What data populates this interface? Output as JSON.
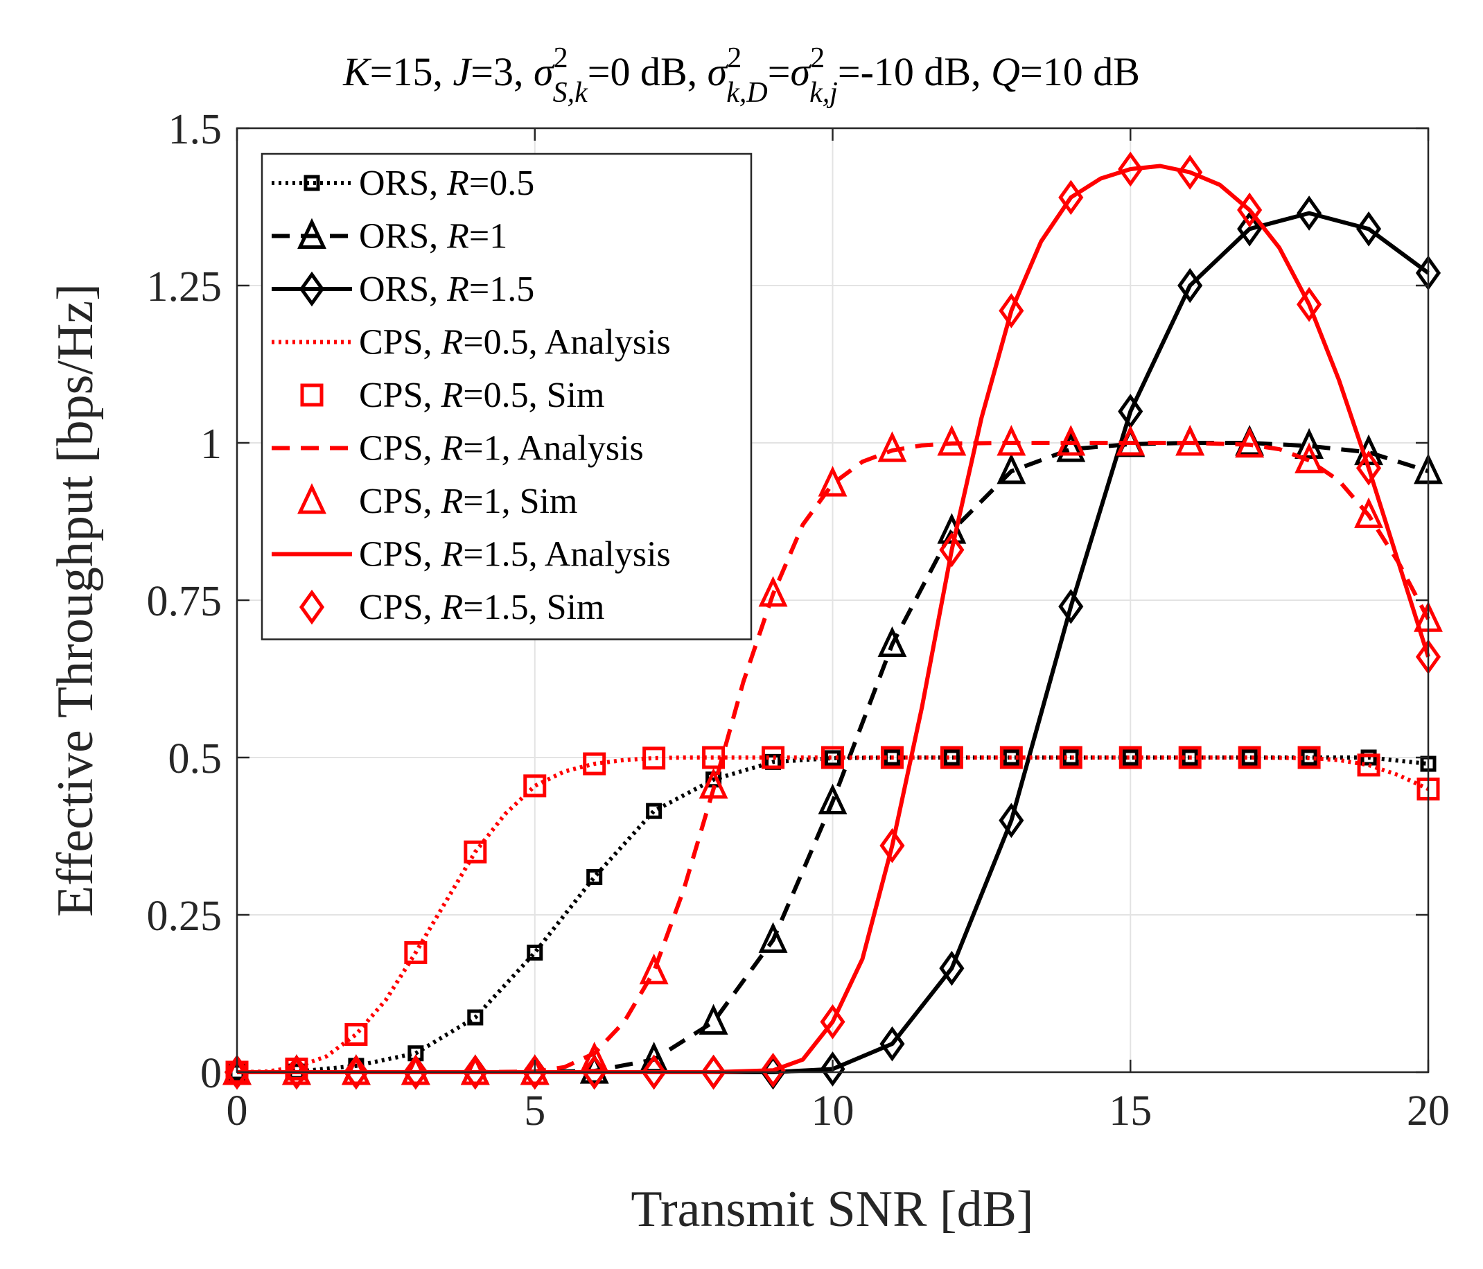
{
  "chart_data": {
    "type": "line",
    "title_parts": {
      "k_label": "K",
      "k_value": "=15, ",
      "j_label": "J",
      "j_value": "=3, ",
      "sigma": "σ",
      "sk_sup": "2",
      "sk_sub": "S,k",
      "sk_value": "=0 dB, ",
      "kd_sup": "2",
      "kd_sub": "k,D",
      "eq": "=",
      "kj_sup": "2",
      "kj_sub": "k,j",
      "kj_value": "=-10 dB, ",
      "q_label": "Q",
      "q_value": "=10 dB"
    },
    "xlabel": "Transmit SNR [dB]",
    "ylabel": "Effective Throughput [bps/Hz]",
    "xlim": [
      0,
      20
    ],
    "ylim": [
      0,
      1.5
    ],
    "xticks": [
      0,
      5,
      10,
      15,
      20
    ],
    "xtick_labels": [
      "0",
      "5",
      "10",
      "15",
      "20"
    ],
    "yticks": [
      0,
      0.25,
      0.5,
      0.75,
      1,
      1.25,
      1.5
    ],
    "ytick_labels": [
      "0",
      "0.25",
      "0.5",
      "0.75",
      "1",
      "1.25",
      "1.5"
    ],
    "grid": true,
    "legend_position": "top-left",
    "x": [
      0,
      1,
      2,
      3,
      4,
      5,
      6,
      7,
      8,
      9,
      10,
      11,
      12,
      13,
      14,
      15,
      16,
      17,
      18,
      19,
      20
    ],
    "series": [
      {
        "legend_prefix": "ORS, ",
        "legend_var": "R",
        "legend_suffix": "=0.5",
        "color": "#000000",
        "line": "dotted",
        "marker": "square",
        "marker_size": "small",
        "values": [
          0,
          0.001,
          0.01,
          0.03,
          0.087,
          0.19,
          0.31,
          0.415,
          0.465,
          0.493,
          0.499,
          0.5,
          0.5,
          0.5,
          0.5,
          0.5,
          0.5,
          0.5,
          0.5,
          0.5,
          0.49
        ]
      },
      {
        "legend_prefix": "ORS, ",
        "legend_var": "R",
        "legend_suffix": "=1",
        "color": "#000000",
        "line": "dashed",
        "marker": "triangle",
        "marker_size": "normal",
        "values": [
          0,
          0,
          0,
          0,
          0,
          0,
          0.002,
          0.02,
          0.08,
          0.21,
          0.43,
          0.68,
          0.86,
          0.955,
          0.99,
          0.998,
          1.0,
          1.0,
          0.995,
          0.985,
          0.955
        ]
      },
      {
        "legend_prefix": "ORS, ",
        "legend_var": "R",
        "legend_suffix": "=1.5",
        "color": "#000000",
        "line": "solid",
        "marker": "diamond",
        "marker_size": "normal",
        "values": [
          0,
          0,
          0,
          0,
          0,
          0,
          0,
          0,
          0,
          0,
          0.005,
          0.045,
          0.165,
          0.4,
          0.74,
          1.05,
          1.25,
          1.34,
          1.365,
          1.34,
          1.27
        ]
      },
      {
        "legend_prefix": "CPS, ",
        "legend_var": "R",
        "legend_suffix": "=0.5, Analysis",
        "color": "#ff0000",
        "line": "dotted",
        "marker": "none",
        "x": [
          0,
          0.5,
          1,
          1.5,
          2,
          2.5,
          3,
          3.5,
          4,
          4.5,
          5,
          5.5,
          6,
          6.5,
          7,
          7.5,
          8,
          9,
          10,
          11,
          12,
          13,
          14,
          15,
          16,
          17,
          18,
          18.5,
          19,
          19.5,
          20
        ],
        "values": [
          0,
          0.001,
          0.008,
          0.025,
          0.06,
          0.115,
          0.19,
          0.27,
          0.35,
          0.41,
          0.455,
          0.478,
          0.49,
          0.496,
          0.499,
          0.5,
          0.5,
          0.5,
          0.5,
          0.5,
          0.5,
          0.5,
          0.5,
          0.5,
          0.5,
          0.5,
          0.499,
          0.496,
          0.488,
          0.472,
          0.45
        ]
      },
      {
        "legend_prefix": "CPS, ",
        "legend_var": "R",
        "legend_suffix": "=0.5, Sim",
        "color": "#ff0000",
        "line": "none",
        "marker": "square",
        "marker_size": "normal",
        "values": [
          0,
          0.005,
          0.06,
          0.19,
          0.35,
          0.455,
          0.49,
          0.499,
          0.5,
          0.5,
          0.5,
          0.5,
          0.5,
          0.5,
          0.5,
          0.5,
          0.5,
          0.5,
          0.5,
          0.488,
          0.45
        ]
      },
      {
        "legend_prefix": "CPS, ",
        "legend_var": "R",
        "legend_suffix": "=1, Analysis",
        "color": "#ff0000",
        "line": "dashed",
        "marker": "none",
        "x": [
          0,
          1,
          2,
          3,
          4,
          5,
          5.5,
          6,
          6.5,
          7,
          7.5,
          8,
          8.5,
          9,
          9.5,
          10,
          10.5,
          11,
          11.5,
          12,
          13,
          14,
          15,
          16,
          17,
          17.5,
          18,
          18.5,
          19,
          19.5,
          20
        ],
        "values": [
          0,
          0,
          0,
          0,
          0,
          0.001,
          0.008,
          0.03,
          0.08,
          0.16,
          0.29,
          0.45,
          0.62,
          0.76,
          0.87,
          0.935,
          0.97,
          0.988,
          0.996,
          0.999,
          1.0,
          1.0,
          1.0,
          1.0,
          0.997,
          0.99,
          0.972,
          0.94,
          0.885,
          0.81,
          0.72
        ]
      },
      {
        "legend_prefix": "CPS, ",
        "legend_var": "R",
        "legend_suffix": "=1, Sim",
        "color": "#ff0000",
        "line": "none",
        "marker": "triangle",
        "marker_size": "normal",
        "values": [
          0,
          0,
          0,
          0,
          0,
          0,
          0.02,
          0.16,
          0.455,
          0.76,
          0.935,
          0.99,
          1.0,
          1.0,
          1.0,
          1.0,
          1.0,
          0.997,
          0.972,
          0.885,
          0.72
        ]
      },
      {
        "legend_prefix": "CPS, ",
        "legend_var": "R",
        "legend_suffix": "=1.5, Analysis",
        "color": "#ff0000",
        "line": "solid",
        "marker": "none",
        "x": [
          0,
          1,
          2,
          3,
          4,
          5,
          6,
          7,
          8,
          9,
          9.5,
          10,
          10.5,
          11,
          11.5,
          12,
          12.5,
          13,
          13.5,
          14,
          14.5,
          15,
          15.5,
          16,
          16.5,
          17,
          17.5,
          18,
          18.5,
          19,
          19.5,
          20
        ],
        "values": [
          0,
          0,
          0,
          0,
          0,
          0,
          0,
          0,
          0,
          0.003,
          0.02,
          0.08,
          0.18,
          0.36,
          0.58,
          0.83,
          1.04,
          1.21,
          1.32,
          1.39,
          1.42,
          1.435,
          1.44,
          1.43,
          1.41,
          1.37,
          1.31,
          1.22,
          1.1,
          0.96,
          0.81,
          0.66
        ]
      },
      {
        "legend_prefix": "CPS, ",
        "legend_var": "R",
        "legend_suffix": "=1.5, Sim",
        "color": "#ff0000",
        "line": "none",
        "marker": "diamond",
        "marker_size": "normal",
        "values": [
          0,
          0,
          0,
          0,
          0,
          0,
          0,
          0,
          0,
          0.003,
          0.08,
          0.36,
          0.83,
          1.21,
          1.39,
          1.435,
          1.43,
          1.37,
          1.22,
          0.96,
          0.66
        ]
      }
    ]
  }
}
